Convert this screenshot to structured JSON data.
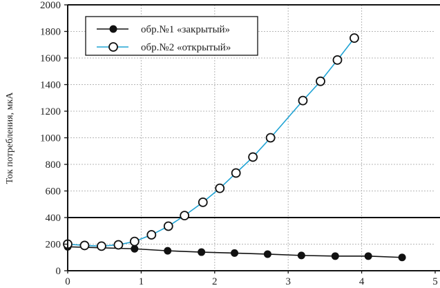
{
  "chart_data": {
    "type": "line",
    "title": "",
    "xlabel": "",
    "ylabel": "Ток потребления, мкА",
    "xlim": [
      0,
      5
    ],
    "ylim": [
      0,
      2000
    ],
    "x_ticks": [
      "0",
      "1",
      "2",
      "3",
      "4",
      "5"
    ],
    "y_ticks": [
      "0",
      "200",
      "400",
      "600",
      "800",
      "1000",
      "1200",
      "1400",
      "1600",
      "1800",
      "2000"
    ],
    "grid": true,
    "legend_position": "top-left",
    "reference_line": {
      "y": 400,
      "color": "#000000"
    },
    "series": [
      {
        "name": "обр.№1 «закрытый»",
        "color": "#111111",
        "marker": "filled-circle",
        "x": [
          0,
          0.91,
          1.36,
          1.82,
          2.27,
          2.72,
          3.18,
          3.64,
          4.09,
          4.55
        ],
        "y": [
          180,
          165,
          150,
          140,
          133,
          125,
          115,
          110,
          110,
          100
        ]
      },
      {
        "name": "обр.№2 «открытый»",
        "color": "#1fa3d4",
        "marker": "open-circle",
        "x": [
          0,
          0.23,
          0.46,
          0.69,
          0.91,
          1.14,
          1.37,
          1.59,
          1.84,
          2.07,
          2.29,
          2.52,
          2.76,
          3.2,
          3.44,
          3.67,
          3.9
        ],
        "y": [
          200,
          190,
          185,
          195,
          220,
          270,
          335,
          415,
          515,
          620,
          735,
          855,
          1000,
          1280,
          1425,
          1585,
          1750
        ]
      }
    ]
  }
}
